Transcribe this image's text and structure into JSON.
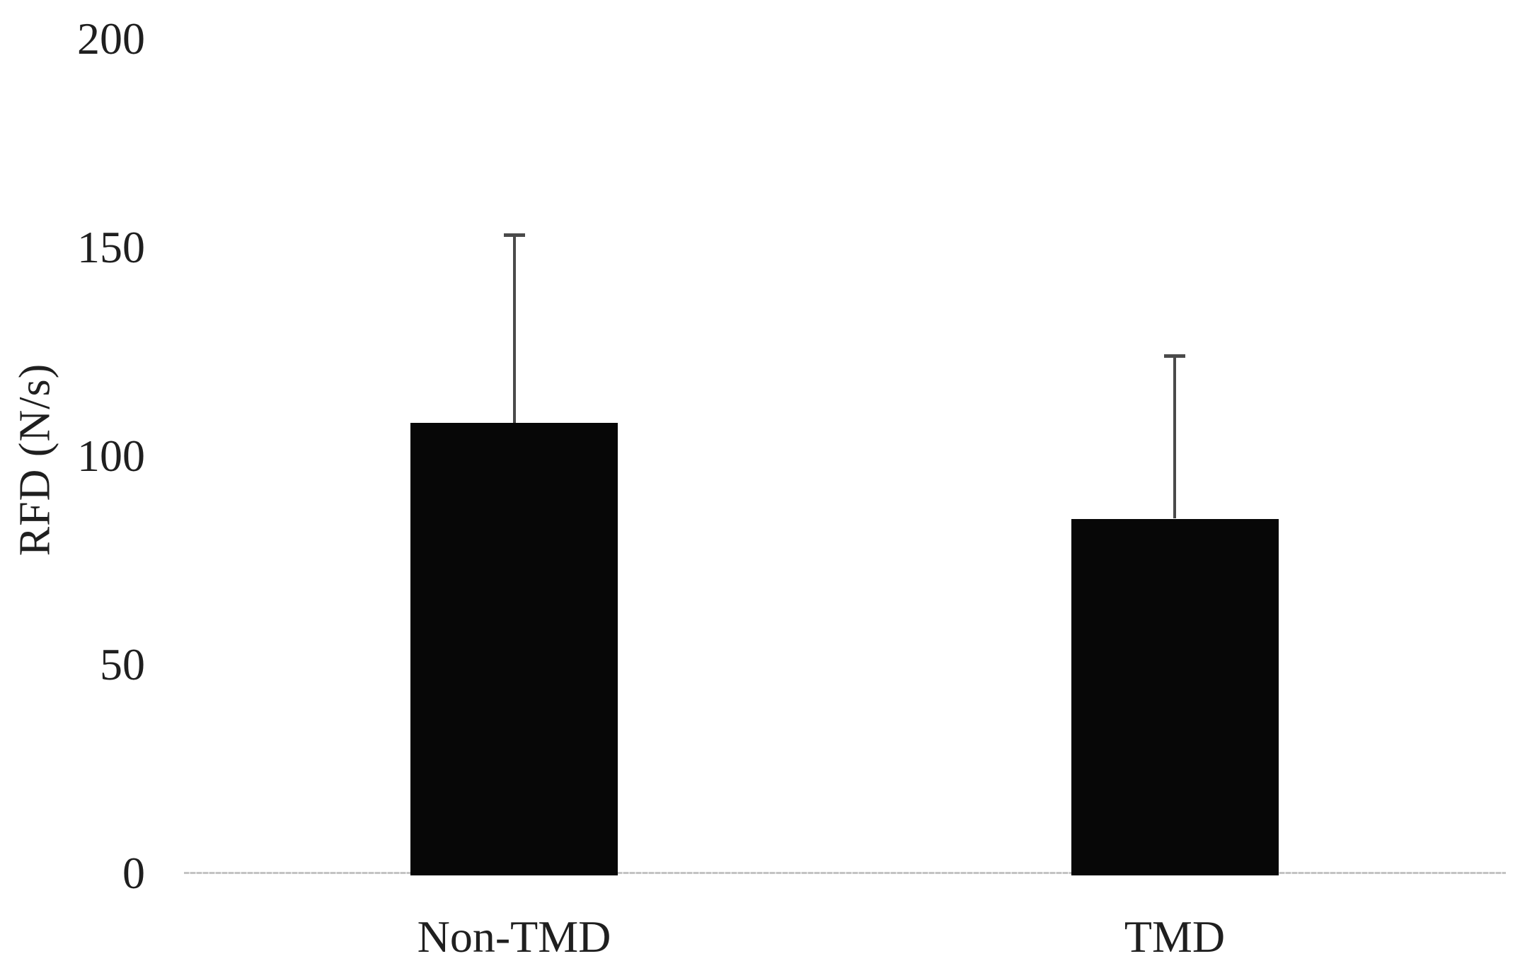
{
  "chart_data": {
    "type": "bar",
    "title": "",
    "xlabel": "",
    "ylabel": "RFD (N/s)",
    "categories": [
      "Non-TMD",
      "TMD"
    ],
    "values": [
      108,
      85
    ],
    "error_upper": [
      45,
      39
    ],
    "yticks": [
      0,
      50,
      100,
      150,
      200
    ],
    "ylim": [
      0,
      200
    ],
    "grid": false,
    "legend": false,
    "bar_color": "#070707",
    "error_bar_color": "#4a4a4a",
    "axis_line_color": "#c3c3c3",
    "text_color": "#1f1f1f",
    "background_color": "#ffffff"
  }
}
